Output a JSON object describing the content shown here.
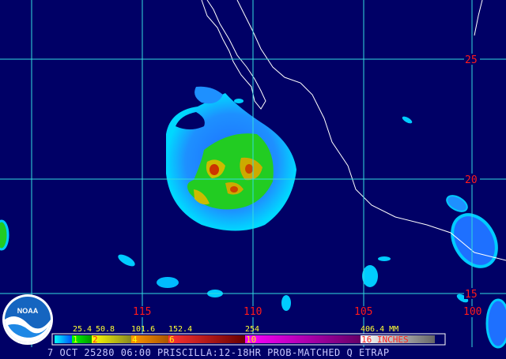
{
  "caption": "7 OCT 25280 06:00 PRISCILLA:12-18HR PROB-MATCHED Q ETRAP",
  "logo": {
    "text": "NOAA"
  },
  "grid": {
    "lat_labels": [
      "25",
      "20",
      "15"
    ],
    "lon_labels": [
      "115",
      "110",
      "105",
      "100"
    ]
  },
  "colorbar": {
    "mm_labels": [
      "25.4",
      "50.8",
      "101.6",
      "152.4",
      "254",
      "406.4 MM"
    ],
    "inch_labels": [
      "1",
      "2",
      "4",
      "6",
      "10",
      "16 INCHES"
    ]
  },
  "colors": {
    "background": "#000066",
    "grid": "#33dddd",
    "coast": "#ffffff",
    "label": "#ff1a1a"
  }
}
